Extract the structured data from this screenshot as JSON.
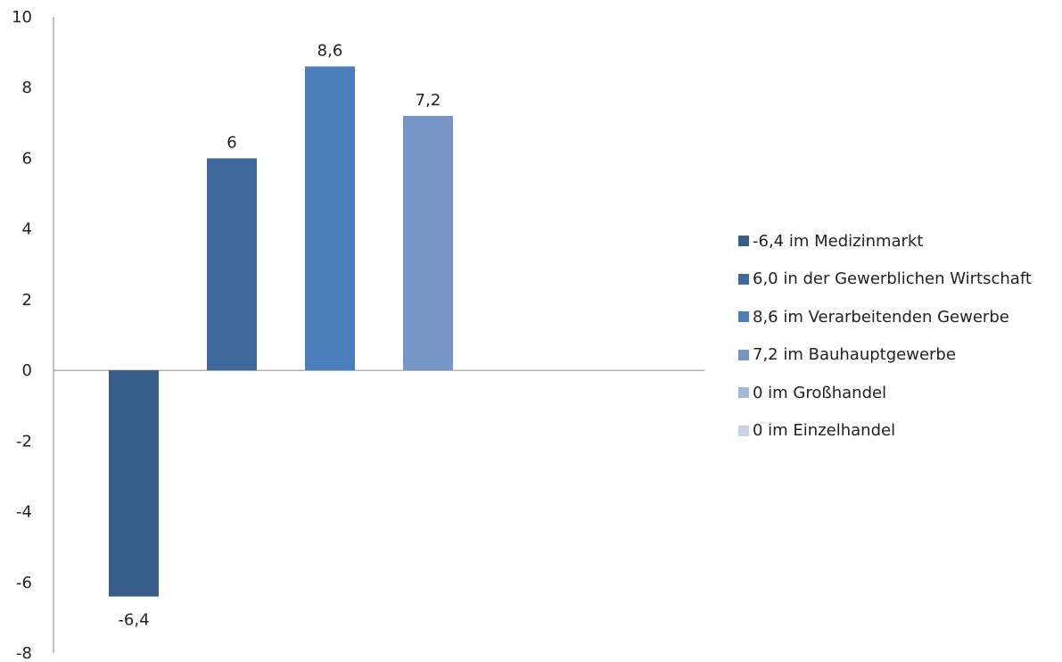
{
  "chart_data": {
    "type": "bar",
    "ylim": [
      -8,
      10
    ],
    "yticks": [
      "-8",
      "-6",
      "-4",
      "-2",
      "0",
      "2",
      "4",
      "6",
      "8",
      "10"
    ],
    "grid": false,
    "legend_position": "right",
    "series": [
      {
        "name": "-6,4 im Medizinmarkt",
        "value": -6.4,
        "label": "-6,4",
        "color": "#385D8A"
      },
      {
        "name": "6,0 in der Gewerblichen Wirtschaft",
        "value": 6.0,
        "label": "6",
        "color": "#3F699C"
      },
      {
        "name": "8,6 im Verarbeitenden Gewerbe",
        "value": 8.6,
        "label": "8,6",
        "color": "#4A7EBB"
      },
      {
        "name": "7,2 im Bauhauptgewerbe",
        "value": 7.2,
        "label": "7,2",
        "color": "#7596C7"
      },
      {
        "name": "0 im Großhandel",
        "value": 0,
        "label": "",
        "color": "#A5B8DA"
      },
      {
        "name": "0 im Einzelhandel",
        "value": 0,
        "label": "",
        "color": "#C9D3E8"
      }
    ]
  }
}
